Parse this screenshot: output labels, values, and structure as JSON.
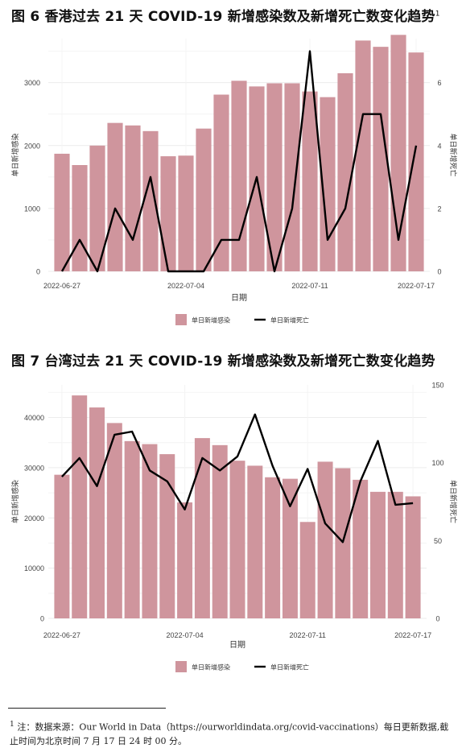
{
  "charts": [
    {
      "title": "图 6 香港过去 21 天 COVID-19 新增感染数及新增死亡数变化趋势",
      "title_sup": "1"
    },
    {
      "title": "图 7 台湾过去 21 天 COVID-19 新增感染数及新增死亡数变化趋势",
      "title_sup": ""
    }
  ],
  "footnote": {
    "marker": "1",
    "text": "注：数据来源：Our World in Data（https://ourworldindata.org/covid-vaccinations）每日更新数据,截止时间为北京时间 7 月 17 日 24 时 00 分。"
  },
  "colors": {
    "bar": "#cf959d",
    "line": "#000000",
    "grid": "#ececec",
    "axis_text": "#444444"
  },
  "chart_data": [
    {
      "type": "bar+line",
      "title": "图 6 香港过去 21 天 COVID-19 新增感染数及新增死亡数变化趋势",
      "xlabel": "日期",
      "ylabel": "单日新增感染",
      "ylabel_right": "单日新增死亡",
      "x_ticks": [
        "2022-06-27",
        "2022-07-04",
        "2022-07-11",
        "2022-07-17"
      ],
      "x_tick_index": [
        0,
        7,
        14,
        20
      ],
      "ylim": [
        0,
        3700
      ],
      "y_ticks": [
        0,
        1000,
        2000,
        3000
      ],
      "ylim_right": [
        0,
        7.4
      ],
      "y_ticks_right": [
        0,
        2,
        4,
        6
      ],
      "grid": true,
      "legend_position": "bottom",
      "series": [
        {
          "name": "单日新增感染",
          "kind": "bar",
          "values": [
            1870,
            1690,
            2000,
            2360,
            2320,
            2230,
            1830,
            1840,
            2270,
            2810,
            3030,
            2940,
            2990,
            2990,
            2860,
            2770,
            3150,
            3670,
            3570,
            3760,
            3480
          ]
        },
        {
          "name": "单日新增死亡",
          "kind": "line",
          "axis": "right",
          "values": [
            0,
            1,
            0,
            2,
            1,
            3,
            0,
            0,
            0,
            1,
            1,
            3,
            0,
            2,
            7,
            1,
            2,
            5,
            5,
            1,
            4
          ]
        }
      ]
    },
    {
      "type": "bar+line",
      "title": "图 7 台湾过去 21 天 COVID-19 新增感染数及新增死亡数变化趋势",
      "xlabel": "日期",
      "ylabel": "单日新增感染",
      "ylabel_right": "单日新增死亡",
      "x_ticks": [
        "2022-06-27",
        "2022-07-04",
        "2022-07-11",
        "2022-07-17"
      ],
      "x_tick_index": [
        0,
        7,
        14,
        20
      ],
      "ylim": [
        0,
        46500
      ],
      "y_ticks": [
        0,
        10000,
        20000,
        30000,
        40000
      ],
      "ylim_right": [
        0,
        150
      ],
      "y_ticks_right": [
        0,
        50,
        100,
        150
      ],
      "grid": true,
      "legend_position": "bottom",
      "series": [
        {
          "name": "单日新增感染",
          "kind": "bar",
          "values": [
            28600,
            44400,
            42000,
            38900,
            35300,
            34700,
            32700,
            23100,
            35900,
            34500,
            31400,
            30400,
            28100,
            27800,
            19200,
            31200,
            29900,
            27600,
            25200,
            25200,
            24300
          ]
        },
        {
          "name": "单日新增死亡",
          "kind": "line",
          "axis": "right",
          "values": [
            91,
            103,
            85,
            118,
            120,
            95,
            88,
            70,
            103,
            95,
            104,
            131,
            98,
            72,
            96,
            61,
            49,
            88,
            114,
            73,
            74
          ]
        }
      ]
    }
  ]
}
